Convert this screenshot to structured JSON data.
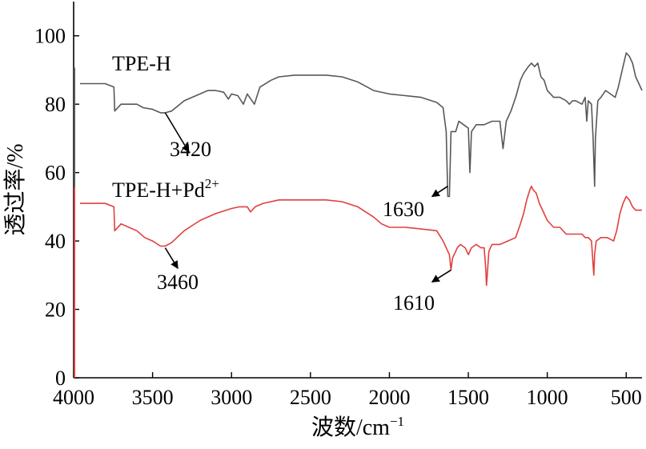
{
  "chart_data": {
    "type": "line",
    "title": "",
    "xlabel": "波数/cm",
    "xlabel_sup": "−1",
    "ylabel": "透过率/%",
    "xlim": [
      4000,
      400
    ],
    "ylim": [
      0,
      110
    ],
    "x_reversed": true,
    "x_ticks": [
      4000,
      3500,
      3000,
      2500,
      2000,
      1500,
      1000,
      500
    ],
    "y_ticks": [
      0,
      20,
      40,
      60,
      80,
      100
    ],
    "grid": false,
    "series": [
      {
        "name": "TPE-H",
        "name_sup": "",
        "color": "#585858",
        "points": [
          [
            3960,
            86
          ],
          [
            3900,
            86
          ],
          [
            3800,
            86
          ],
          [
            3745,
            85
          ],
          [
            3740,
            78
          ],
          [
            3700,
            80
          ],
          [
            3650,
            80
          ],
          [
            3600,
            80
          ],
          [
            3560,
            79
          ],
          [
            3500,
            78.5
          ],
          [
            3450,
            77.5
          ],
          [
            3420,
            77.5
          ],
          [
            3380,
            78
          ],
          [
            3300,
            81
          ],
          [
            3200,
            83
          ],
          [
            3150,
            84
          ],
          [
            3100,
            84
          ],
          [
            3050,
            83.5
          ],
          [
            3020,
            81.5
          ],
          [
            3000,
            83
          ],
          [
            2960,
            82.5
          ],
          [
            2925,
            80
          ],
          [
            2900,
            83
          ],
          [
            2855,
            80
          ],
          [
            2820,
            85
          ],
          [
            2750,
            87
          ],
          [
            2700,
            88
          ],
          [
            2600,
            88.5
          ],
          [
            2500,
            88.5
          ],
          [
            2400,
            88.5
          ],
          [
            2300,
            88
          ],
          [
            2200,
            86.5
          ],
          [
            2100,
            84
          ],
          [
            2000,
            83
          ],
          [
            1900,
            82.5
          ],
          [
            1800,
            82
          ],
          [
            1700,
            80.5
          ],
          [
            1660,
            79
          ],
          [
            1640,
            72
          ],
          [
            1630,
            53
          ],
          [
            1620,
            53
          ],
          [
            1610,
            72
          ],
          [
            1580,
            72
          ],
          [
            1560,
            75
          ],
          [
            1530,
            74
          ],
          [
            1500,
            73
          ],
          [
            1490,
            60
          ],
          [
            1480,
            72
          ],
          [
            1450,
            74
          ],
          [
            1400,
            74
          ],
          [
            1350,
            75
          ],
          [
            1300,
            75
          ],
          [
            1280,
            67
          ],
          [
            1260,
            75
          ],
          [
            1230,
            78
          ],
          [
            1200,
            82
          ],
          [
            1170,
            87
          ],
          [
            1150,
            89
          ],
          [
            1120,
            91
          ],
          [
            1100,
            92
          ],
          [
            1080,
            91
          ],
          [
            1060,
            92
          ],
          [
            1040,
            88
          ],
          [
            1020,
            87
          ],
          [
            1000,
            84
          ],
          [
            960,
            82
          ],
          [
            920,
            82
          ],
          [
            880,
            81
          ],
          [
            860,
            80
          ],
          [
            840,
            81
          ],
          [
            820,
            81
          ],
          [
            780,
            80
          ],
          [
            760,
            82
          ],
          [
            750,
            75
          ],
          [
            740,
            81
          ],
          [
            720,
            80
          ],
          [
            710,
            70
          ],
          [
            700,
            56
          ],
          [
            695,
            70
          ],
          [
            680,
            81
          ],
          [
            660,
            82
          ],
          [
            630,
            84
          ],
          [
            600,
            83
          ],
          [
            570,
            82
          ],
          [
            550,
            85
          ],
          [
            520,
            91
          ],
          [
            500,
            95
          ],
          [
            480,
            94
          ],
          [
            460,
            92
          ],
          [
            440,
            88
          ],
          [
            420,
            86
          ],
          [
            400,
            84
          ]
        ]
      },
      {
        "name": "TPE-H+Pd",
        "name_sup": "2+",
        "color": "#e0403e",
        "points": [
          [
            3960,
            51
          ],
          [
            3900,
            51
          ],
          [
            3800,
            51
          ],
          [
            3745,
            50
          ],
          [
            3740,
            43
          ],
          [
            3700,
            45
          ],
          [
            3650,
            44
          ],
          [
            3600,
            43
          ],
          [
            3550,
            41
          ],
          [
            3500,
            40
          ],
          [
            3450,
            38.5
          ],
          [
            3420,
            38.5
          ],
          [
            3380,
            39.5
          ],
          [
            3300,
            43
          ],
          [
            3200,
            46
          ],
          [
            3100,
            48
          ],
          [
            3000,
            49.5
          ],
          [
            2950,
            50
          ],
          [
            2900,
            50
          ],
          [
            2880,
            48.5
          ],
          [
            2850,
            50
          ],
          [
            2800,
            51
          ],
          [
            2700,
            52
          ],
          [
            2600,
            52
          ],
          [
            2500,
            52
          ],
          [
            2400,
            52
          ],
          [
            2300,
            51.5
          ],
          [
            2200,
            50
          ],
          [
            2100,
            47
          ],
          [
            2050,
            45
          ],
          [
            2000,
            44
          ],
          [
            1900,
            44
          ],
          [
            1800,
            43.5
          ],
          [
            1700,
            43
          ],
          [
            1660,
            40
          ],
          [
            1640,
            38
          ],
          [
            1620,
            36
          ],
          [
            1610,
            31.5
          ],
          [
            1600,
            35
          ],
          [
            1570,
            38
          ],
          [
            1550,
            39
          ],
          [
            1520,
            38
          ],
          [
            1500,
            36
          ],
          [
            1480,
            38
          ],
          [
            1450,
            39
          ],
          [
            1420,
            38
          ],
          [
            1400,
            38
          ],
          [
            1390,
            32
          ],
          [
            1385,
            27
          ],
          [
            1380,
            30
          ],
          [
            1370,
            37
          ],
          [
            1350,
            39
          ],
          [
            1300,
            39
          ],
          [
            1250,
            40
          ],
          [
            1200,
            41
          ],
          [
            1170,
            45
          ],
          [
            1150,
            48
          ],
          [
            1130,
            52
          ],
          [
            1110,
            55
          ],
          [
            1100,
            56
          ],
          [
            1090,
            55
          ],
          [
            1070,
            54
          ],
          [
            1050,
            51
          ],
          [
            1030,
            49
          ],
          [
            1000,
            46
          ],
          [
            960,
            44
          ],
          [
            920,
            44
          ],
          [
            880,
            42
          ],
          [
            850,
            42
          ],
          [
            820,
            42
          ],
          [
            780,
            42
          ],
          [
            760,
            41
          ],
          [
            740,
            41
          ],
          [
            720,
            40
          ],
          [
            710,
            33
          ],
          [
            705,
            30
          ],
          [
            700,
            36
          ],
          [
            690,
            40
          ],
          [
            660,
            41
          ],
          [
            620,
            41
          ],
          [
            580,
            40
          ],
          [
            560,
            43
          ],
          [
            540,
            48
          ],
          [
            520,
            51
          ],
          [
            500,
            53
          ],
          [
            480,
            52
          ],
          [
            460,
            50
          ],
          [
            440,
            49
          ],
          [
            420,
            49
          ],
          [
            400,
            49
          ]
        ]
      }
    ],
    "annotations": [
      {
        "text": "3420",
        "from": [
          3420,
          77.5
        ],
        "to": [
          3270,
          66
        ]
      },
      {
        "text": "1630",
        "from": [
          1630,
          56
        ],
        "to": [
          1730,
          53
        ]
      },
      {
        "text": "3460",
        "from": [
          3420,
          38
        ],
        "to": [
          3340,
          32
        ]
      },
      {
        "text": "1610",
        "from": [
          1610,
          31.5
        ],
        "to": [
          1730,
          28
        ]
      }
    ]
  }
}
